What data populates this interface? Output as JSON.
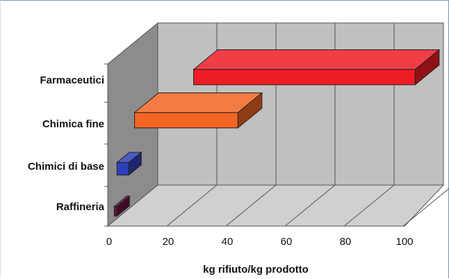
{
  "chart_data": {
    "type": "bar",
    "orientation": "horizontal",
    "three_d": true,
    "xlabel": "kg rifiuto/kg prodotto",
    "ylabel": "",
    "xlim": [
      0,
      100
    ],
    "x_ticks": [
      "0",
      "20",
      "40",
      "60",
      "80",
      "100"
    ],
    "grid": true,
    "categories": [
      "Farmaceutici",
      "Chimica fine",
      "Chimici di base",
      "Raffineria"
    ],
    "bars": [
      {
        "category": "Farmaceutici",
        "start": 25,
        "end": 100,
        "color": "#ee1c25"
      },
      {
        "category": "Chimica fine",
        "start": 5,
        "end": 40,
        "color": "#f26522"
      },
      {
        "category": "Chimici di base",
        "start": 1,
        "end": 5,
        "color": "#2e3fb8"
      },
      {
        "category": "Raffineria",
        "start": 0.1,
        "end": 1,
        "color": "#6d1040"
      }
    ]
  }
}
